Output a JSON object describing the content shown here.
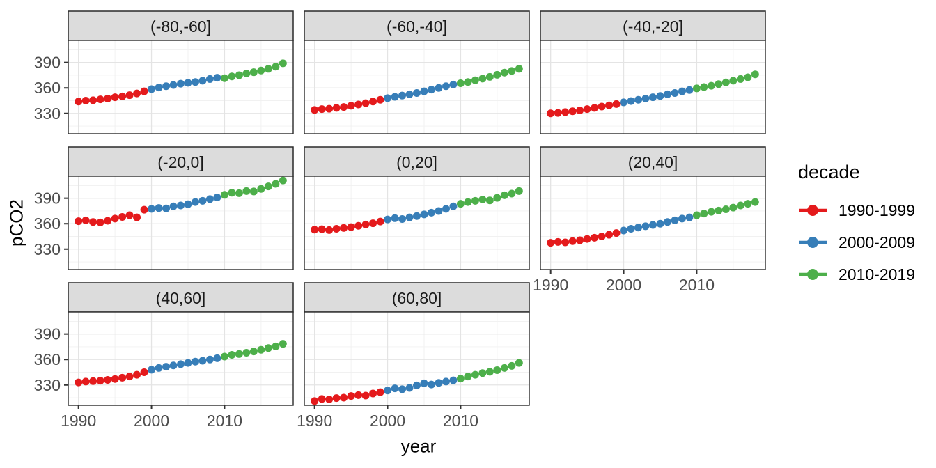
{
  "chart_data": {
    "type": "scatter",
    "title": "",
    "xlabel": "year",
    "ylabel": "pCO2",
    "facet_variable": "latitude band",
    "layout": {
      "facet_columns": 3,
      "grid": "on",
      "legend_position": "right",
      "theme": "white panels, gray strips, light gray gridlines"
    },
    "x_domain": [
      1988.6,
      2019.4
    ],
    "y_domain": [
      306,
      416
    ],
    "x_ticks": [
      1990,
      2000,
      2010
    ],
    "x_minor_ticks": [
      1995,
      2005,
      2015
    ],
    "y_ticks": [
      390,
      360,
      330
    ],
    "y_minor_ticks": [
      315,
      345,
      375,
      405
    ],
    "years": [
      1990,
      1991,
      1992,
      1993,
      1994,
      1995,
      1996,
      1997,
      1998,
      1999,
      2000,
      2001,
      2002,
      2003,
      2004,
      2005,
      2006,
      2007,
      2008,
      2009,
      2010,
      2011,
      2012,
      2013,
      2014,
      2015,
      2016,
      2017,
      2018
    ],
    "legend": {
      "title": "decade",
      "entries": [
        {
          "label": "1990-1999",
          "color": "#E41A1C"
        },
        {
          "label": "2000-2009",
          "color": "#377EB8"
        },
        {
          "label": "2010-2019",
          "color": "#4DAF4A"
        }
      ]
    },
    "decades": [
      {
        "name": "1990-1999",
        "from": 1990,
        "to": 1999,
        "color": "#E41A1C"
      },
      {
        "name": "2000-2009",
        "from": 2000,
        "to": 2009,
        "color": "#377EB8"
      },
      {
        "name": "2010-2019",
        "from": 2010,
        "to": 2019,
        "color": "#4DAF4A"
      }
    ],
    "facets": [
      {
        "label": "(-80,-60]",
        "show_x_axis": false,
        "show_y_axis": true,
        "values": [
          344,
          345,
          345.5,
          346.5,
          347.5,
          349,
          350,
          351.5,
          353.5,
          356,
          358.5,
          360.5,
          362,
          363.5,
          365,
          366,
          367,
          368.5,
          370.5,
          372,
          371.5,
          373.5,
          375,
          377,
          378.5,
          380.5,
          382.5,
          385,
          389
        ]
      },
      {
        "label": "(-60,-40]",
        "show_x_axis": false,
        "show_y_axis": false,
        "values": [
          334,
          335,
          335.5,
          336.5,
          337.5,
          339,
          340.5,
          342,
          344,
          346,
          348,
          349.5,
          351,
          352.5,
          354,
          356,
          358,
          360,
          362,
          364,
          365.5,
          367,
          369,
          371,
          373,
          375.5,
          378,
          380,
          382.5
        ]
      },
      {
        "label": "(-40,-20]",
        "show_x_axis": false,
        "show_y_axis": false,
        "values": [
          330,
          330.5,
          331.5,
          332.5,
          333.5,
          335,
          336.5,
          338,
          339.5,
          341,
          343,
          344.5,
          346,
          347.5,
          349,
          350.5,
          352.5,
          354,
          356,
          357.5,
          359.5,
          361,
          362.5,
          364.5,
          366.5,
          368.5,
          370.5,
          372.5,
          376
        ]
      },
      {
        "label": "(-20,0]",
        "show_x_axis": false,
        "show_y_axis": true,
        "values": [
          363,
          364,
          362,
          361.5,
          363.5,
          366,
          368,
          370,
          367.5,
          376.5,
          377.5,
          378.5,
          378,
          380.5,
          381.5,
          383,
          385.5,
          387,
          389,
          391,
          394,
          396.5,
          396,
          398.5,
          398,
          401,
          404,
          407,
          411
        ]
      },
      {
        "label": "(0,20]",
        "show_x_axis": false,
        "show_y_axis": false,
        "values": [
          353,
          353.5,
          352.5,
          354,
          355,
          356,
          357.5,
          359,
          360.5,
          362.5,
          365,
          366.5,
          365.5,
          367.5,
          369,
          371,
          373,
          375,
          377.5,
          380.5,
          383.5,
          385.5,
          387,
          388.5,
          387.5,
          390.5,
          393.5,
          395.5,
          398.5
        ]
      },
      {
        "label": "(20,40]",
        "show_x_axis": true,
        "show_y_axis": false,
        "values": [
          337.5,
          338.5,
          338,
          339.5,
          340.5,
          342,
          343.5,
          345,
          347,
          349,
          352,
          354,
          355.5,
          357,
          358.5,
          360,
          362,
          364,
          366,
          367.5,
          370,
          372,
          374,
          375.5,
          377,
          379,
          381.5,
          383.5,
          385.5
        ]
      },
      {
        "label": "(40,60]",
        "show_x_axis": true,
        "show_y_axis": true,
        "values": [
          333,
          334,
          334.5,
          335,
          336,
          337,
          338.5,
          340,
          342,
          345,
          348,
          350,
          351.5,
          353,
          354.5,
          356,
          357.5,
          358.5,
          360,
          361.5,
          363.5,
          365.5,
          366.5,
          368,
          369.5,
          371.5,
          373.5,
          375.5,
          378.5
        ]
      },
      {
        "label": "(60,80]",
        "show_x_axis": true,
        "show_y_axis": false,
        "values": [
          311,
          313.5,
          313,
          314.5,
          315,
          317,
          318,
          317.5,
          320,
          321.5,
          323.5,
          326,
          325,
          326.5,
          329.5,
          332,
          330.5,
          332.5,
          334,
          335.5,
          337.5,
          340,
          342,
          344,
          345.5,
          347.5,
          350,
          352.5,
          356
        ]
      }
    ],
    "style_colors": {
      "strip_fill": "#DCDCDC",
      "strip_border": "#2a2a2a",
      "panel_border": "#2a2a2a",
      "grid_major": "#E4E4E4",
      "grid_minor": "#F1F1F1",
      "axis_text": "#4D4D4D",
      "tick_mark": "#333333"
    }
  }
}
